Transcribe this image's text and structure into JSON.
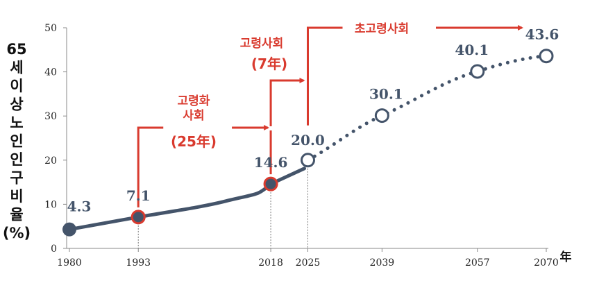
{
  "chart_data": {
    "type": "line",
    "ylabel": [
      "65",
      "세",
      "이",
      "상",
      "노",
      "인",
      "인",
      "구",
      "비",
      "율",
      "(%)"
    ],
    "xunit": "年",
    "x": [
      "1980",
      "1993",
      "2018",
      "2025",
      "2039",
      "2057",
      "2070"
    ],
    "y": [
      4.3,
      7.1,
      14.6,
      20.0,
      30.1,
      40.1,
      43.6
    ],
    "data_labels": [
      "4.3",
      "7.1",
      "14.6",
      "20.0",
      "30.1",
      "40.1",
      "43.6"
    ],
    "yticks": [
      "0",
      "10",
      "20",
      "30",
      "40",
      "50"
    ],
    "ylim": [
      0,
      50
    ],
    "actual_through": "2018",
    "projected_from": "2025",
    "highlight_points": [
      "1993",
      "2018"
    ],
    "colors": {
      "line": "#44546A",
      "highlight": "#d93a2e",
      "annotation": "#d93a2e",
      "axis": "#888888"
    },
    "annotations": [
      {
        "text_lines": [
          "고령화",
          "사회"
        ],
        "sub": "(25年)",
        "from_x": "1993",
        "to_x": "2018"
      },
      {
        "text_lines": [
          "고령사회"
        ],
        "sub": "(7年)",
        "from_x": "2018",
        "to_x": "2025"
      },
      {
        "text_lines": [
          "초고령사회"
        ],
        "sub": "",
        "from_x": "2025",
        "to_x": "2070"
      }
    ]
  }
}
